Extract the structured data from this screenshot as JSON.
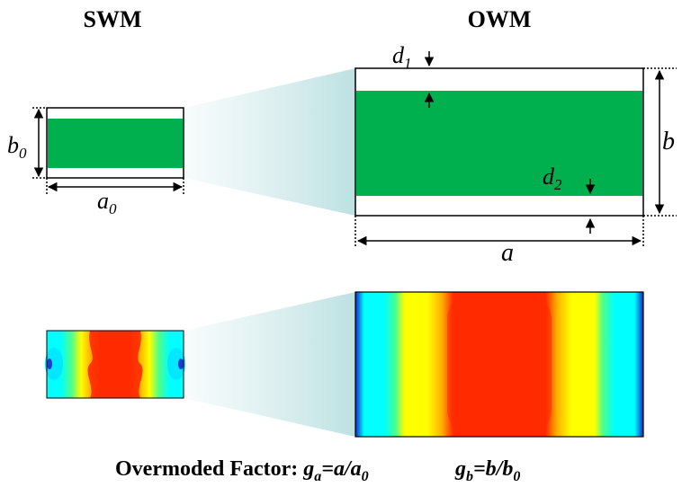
{
  "titles": {
    "swm": "SWM",
    "owm": "OWM"
  },
  "labels": {
    "b0_main": "b",
    "b0_sub": "0",
    "a0_main": "a",
    "a0_sub": "0",
    "d1_main": "d",
    "d1_sub": "1",
    "d2_main": "d",
    "d2_sub": "2",
    "b": "b",
    "a": "a"
  },
  "formula": {
    "prefix": "Overmoded Factor: ",
    "ga_main": "g",
    "ga_sub": "a",
    "ga_eq": "=a/a",
    "ga_den_sub": "0",
    "gb_main": "g",
    "gb_sub": "b",
    "gb_eq": "=b/b",
    "gb_den_sub": "0"
  },
  "colors": {
    "dielectric": "#00b04f",
    "field_red": "#ff1a00",
    "field_yellow": "#ffff00",
    "field_cyan": "#00ffff",
    "field_blue": "#0000c8",
    "projection": "#cfe9ea"
  }
}
